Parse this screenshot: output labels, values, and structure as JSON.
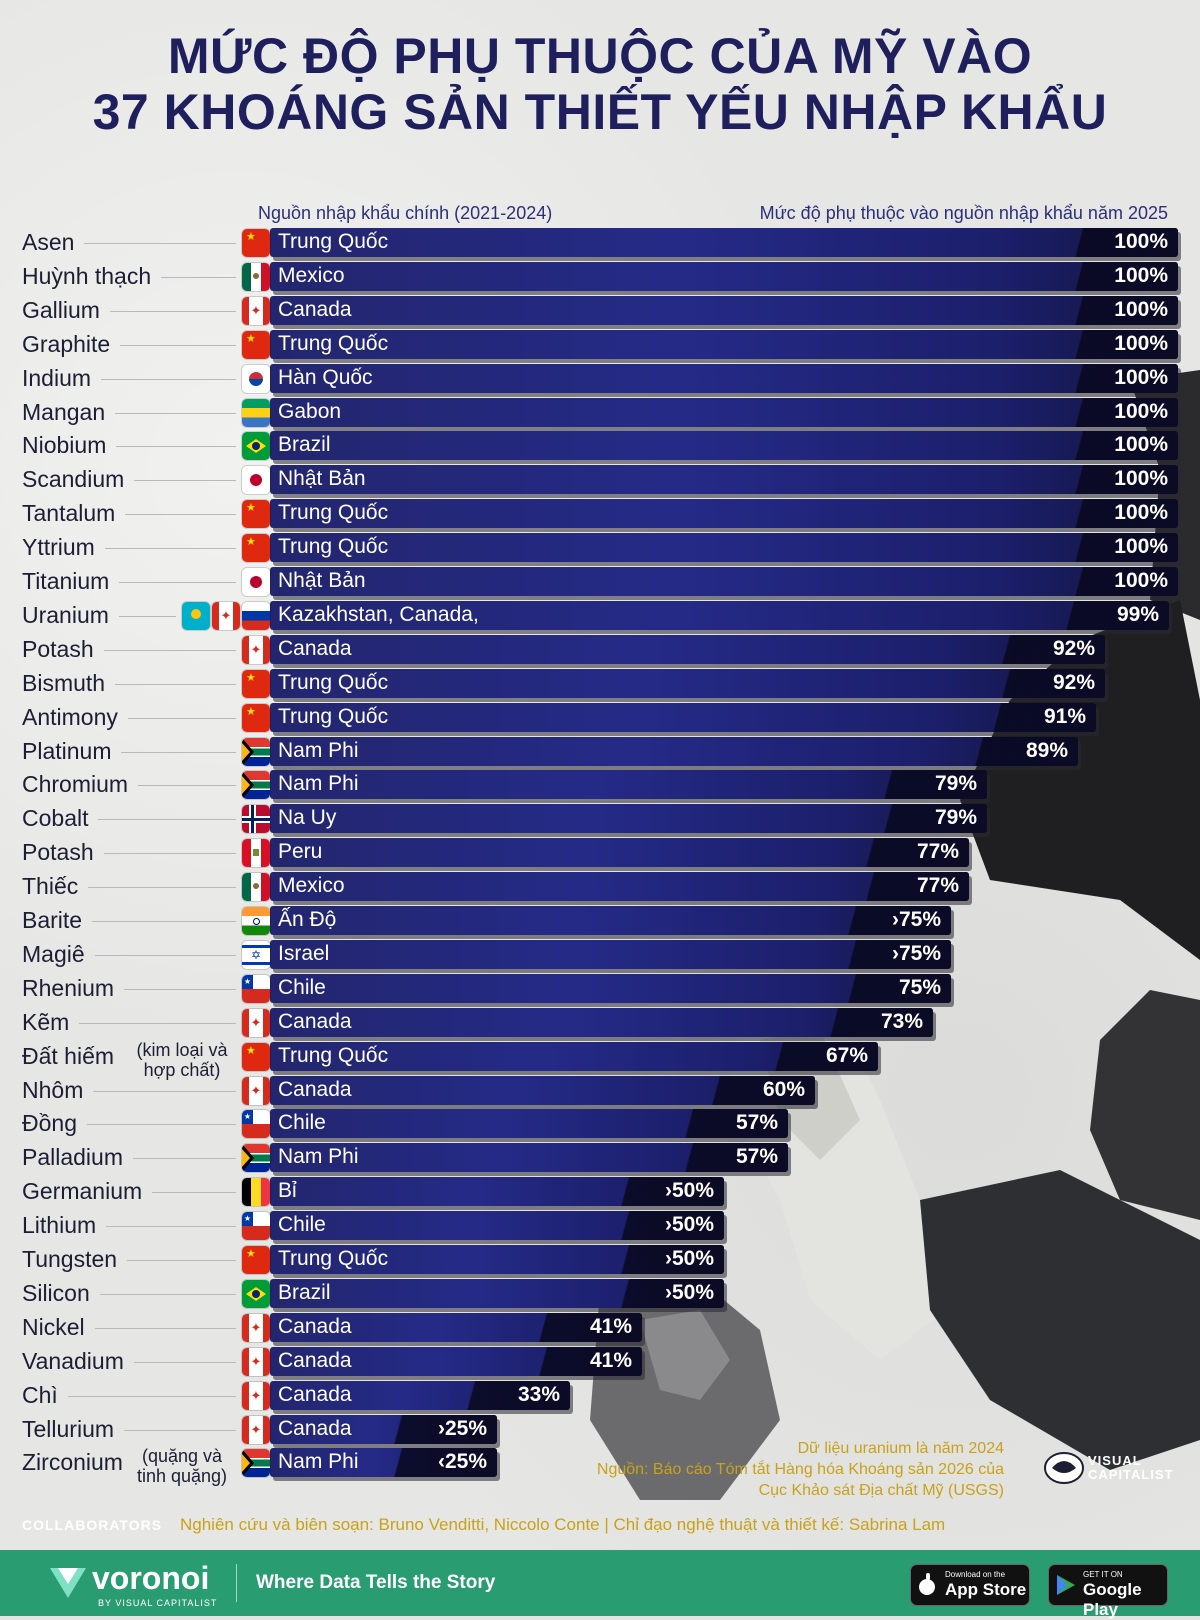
{
  "title_line1": "MỨC ĐỘ PHỤ THUỘC CỦA MỸ VÀO",
  "title_line2": "37 KHOÁNG SẢN THIẾT YẾU NHẬP KHẨU",
  "col_source": "Nguồn nhập khẩu chính (2021-2024)",
  "col_dependency": "Mức độ phụ thuộc vào nguồn nhập khẩu năm 2025",
  "chart_data": {
    "type": "bar",
    "orientation": "horizontal",
    "title": "MỨC ĐỘ PHỤ THUỘC CỦA MỸ VÀO 37 KHOÁNG SẢN THIẾT YẾU NHẬP KHẨU",
    "xlim": [
      0,
      100
    ],
    "rows": [
      {
        "mineral": "Asen",
        "country": "Trung Quốc",
        "value": 100,
        "label": "100%",
        "flags": [
          "china"
        ]
      },
      {
        "mineral": "Huỳnh thạch",
        "country": "Mexico",
        "value": 100,
        "label": "100%",
        "flags": [
          "mexico"
        ]
      },
      {
        "mineral": "Gallium",
        "country": "Canada",
        "value": 100,
        "label": "100%",
        "flags": [
          "canada"
        ]
      },
      {
        "mineral": "Graphite",
        "country": "Trung Quốc",
        "value": 100,
        "label": "100%",
        "flags": [
          "china"
        ]
      },
      {
        "mineral": "Indium",
        "country": "Hàn Quốc",
        "value": 100,
        "label": "100%",
        "flags": [
          "korea"
        ]
      },
      {
        "mineral": "Mangan",
        "country": "Gabon",
        "value": 100,
        "label": "100%",
        "flags": [
          "gabon"
        ]
      },
      {
        "mineral": "Niobium",
        "country": "Brazil",
        "value": 100,
        "label": "100%",
        "flags": [
          "brazil"
        ]
      },
      {
        "mineral": "Scandium",
        "country": "Nhật Bản",
        "value": 100,
        "label": "100%",
        "flags": [
          "japan"
        ]
      },
      {
        "mineral": "Tantalum",
        "country": "Trung Quốc",
        "value": 100,
        "label": "100%",
        "flags": [
          "china"
        ]
      },
      {
        "mineral": "Yttrium",
        "country": "Trung Quốc",
        "value": 100,
        "label": "100%",
        "flags": [
          "china"
        ]
      },
      {
        "mineral": "Titanium",
        "country": "Nhật Bản",
        "value": 100,
        "label": "100%",
        "flags": [
          "japan"
        ]
      },
      {
        "mineral": "Uranium",
        "country": "Kazakhstan, Canada,",
        "value": 99,
        "label": "99%",
        "flags": [
          "kazakhstan",
          "canada",
          "russia"
        ]
      },
      {
        "mineral": "Potash",
        "country": "Canada",
        "value": 92,
        "label": "92%",
        "flags": [
          "canada"
        ]
      },
      {
        "mineral": "Bismuth",
        "country": "Trung Quốc",
        "value": 92,
        "label": "92%",
        "flags": [
          "china"
        ]
      },
      {
        "mineral": "Antimony",
        "country": "Trung Quốc",
        "value": 91,
        "label": "91%",
        "flags": [
          "china"
        ]
      },
      {
        "mineral": "Platinum",
        "country": "Nam Phi",
        "value": 89,
        "label": "89%",
        "flags": [
          "south-africa"
        ]
      },
      {
        "mineral": "Chromium",
        "country": "Nam Phi",
        "value": 79,
        "label": "79%",
        "flags": [
          "south-africa"
        ]
      },
      {
        "mineral": "Cobalt",
        "country": "Na Uy",
        "value": 79,
        "label": "79%",
        "flags": [
          "norway"
        ]
      },
      {
        "mineral": "Potash",
        "country": "Peru",
        "value": 77,
        "label": "77%",
        "flags": [
          "peru"
        ]
      },
      {
        "mineral": "Thiếc",
        "country": "Mexico",
        "value": 77,
        "label": "77%",
        "flags": [
          "mexico"
        ]
      },
      {
        "mineral": "Barite",
        "country": "Ấn Độ",
        "value": 75,
        "label": "›75%",
        "flags": [
          "india"
        ]
      },
      {
        "mineral": "Magiê",
        "country": "Israel",
        "value": 75,
        "label": "›75%",
        "flags": [
          "israel"
        ]
      },
      {
        "mineral": "Rhenium",
        "country": "Chile",
        "value": 75,
        "label": "75%",
        "flags": [
          "chile"
        ]
      },
      {
        "mineral": "Kẽm",
        "country": "Canada",
        "value": 73,
        "label": "73%",
        "flags": [
          "canada"
        ]
      },
      {
        "mineral": "Đất hiếm",
        "note": "(kim loại và hợp chất)",
        "country": "Trung Quốc",
        "value": 67,
        "label": "67%",
        "flags": [
          "china"
        ]
      },
      {
        "mineral": "Nhôm",
        "country": "Canada",
        "value": 60,
        "label": "60%",
        "flags": [
          "canada"
        ]
      },
      {
        "mineral": "Đồng",
        "country": "Chile",
        "value": 57,
        "label": "57%",
        "flags": [
          "chile"
        ]
      },
      {
        "mineral": "Palladium",
        "country": "Nam Phi",
        "value": 57,
        "label": "57%",
        "flags": [
          "south-africa"
        ]
      },
      {
        "mineral": "Germanium",
        "country": "Bỉ",
        "value": 50,
        "label": "›50%",
        "flags": [
          "belgium"
        ]
      },
      {
        "mineral": "Lithium",
        "country": "Chile",
        "value": 50,
        "label": "›50%",
        "flags": [
          "chile"
        ]
      },
      {
        "mineral": "Tungsten",
        "country": "Trung Quốc",
        "value": 50,
        "label": "›50%",
        "flags": [
          "china"
        ]
      },
      {
        "mineral": "Silicon",
        "country": "Brazil",
        "value": 50,
        "label": "›50%",
        "flags": [
          "brazil"
        ]
      },
      {
        "mineral": "Nickel",
        "country": "Canada",
        "value": 41,
        "label": "41%",
        "flags": [
          "canada"
        ]
      },
      {
        "mineral": "Vanadium",
        "country": "Canada",
        "value": 41,
        "label": "41%",
        "flags": [
          "canada"
        ]
      },
      {
        "mineral": "Chì",
        "country": "Canada",
        "value": 33,
        "label": "33%",
        "flags": [
          "canada"
        ]
      },
      {
        "mineral": "Tellurium",
        "country": "Canada",
        "value": 25,
        "label": "›25%",
        "flags": [
          "canada"
        ]
      },
      {
        "mineral": "Zirconium",
        "note": "(quặng và tinh quặng)",
        "country": "Nam Phi",
        "value": 25,
        "label": "‹25%",
        "flags": [
          "south-africa"
        ]
      }
    ]
  },
  "notes": {
    "line1": "Dữ liệu uranium là năm 2024",
    "line2": "Nguồn: Báo cáo Tóm tắt Hàng hóa Khoáng sản 2026 của",
    "line3": "Cục Khảo sát Địa chất Mỹ (USGS)"
  },
  "vc_logo_text": "VISUAL CAPITALIST",
  "collaborators_label": "COLLABORATORS",
  "collaborators_text": "Nghiên cứu và biên soạn: Bruno Venditti, Niccolo Conte | Chỉ đạo nghệ thuật và thiết kế: Sabrina Lam",
  "footer": {
    "brand": "voronoi",
    "brand_sub": "BY VISUAL CAPITALIST",
    "tagline": "Where Data Tells the Story",
    "app_store_small": "Download on the",
    "app_store_big": "App Store",
    "google_play_small": "GET IT ON",
    "google_play_big": "Google Play"
  },
  "colors": {
    "title": "#1e1f5c",
    "bar": "#23266e",
    "note": "#c8a21a",
    "footer": "#2a9c72"
  }
}
